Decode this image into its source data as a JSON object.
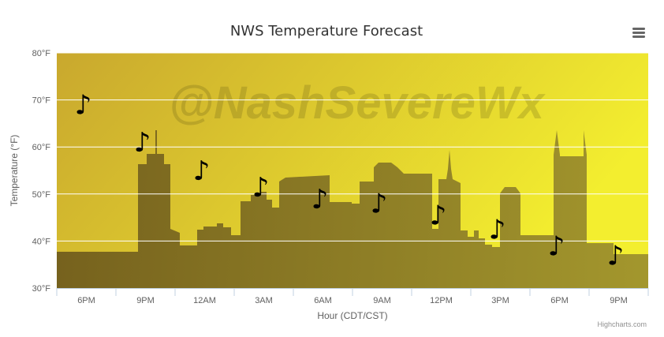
{
  "chart_data": {
    "type": "line",
    "title": "NWS Temperature Forecast",
    "xlabel": "Hour (CDT/CST)",
    "ylabel": "Temperature (°F)",
    "ylim": [
      30,
      80
    ],
    "yticks": [
      30,
      40,
      50,
      60,
      70,
      80
    ],
    "ytick_suffix": "°F",
    "categories": [
      "6PM",
      "9PM",
      "12AM",
      "3AM",
      "6AM",
      "9AM",
      "12PM",
      "3PM",
      "6PM",
      "9PM"
    ],
    "series": [
      {
        "values": [
          69,
          61,
          55,
          51.5,
          49,
          48,
          45.5,
          42.5,
          39,
          37
        ],
        "marker": "♪"
      }
    ],
    "grid": true,
    "legend": "none",
    "background_gradient": [
      "#c9a82e",
      "#f3ee2f"
    ]
  },
  "watermark": "@NashSevereWx",
  "credit": "Highcharts.com",
  "menu_icon": "hamburger-menu-icon"
}
